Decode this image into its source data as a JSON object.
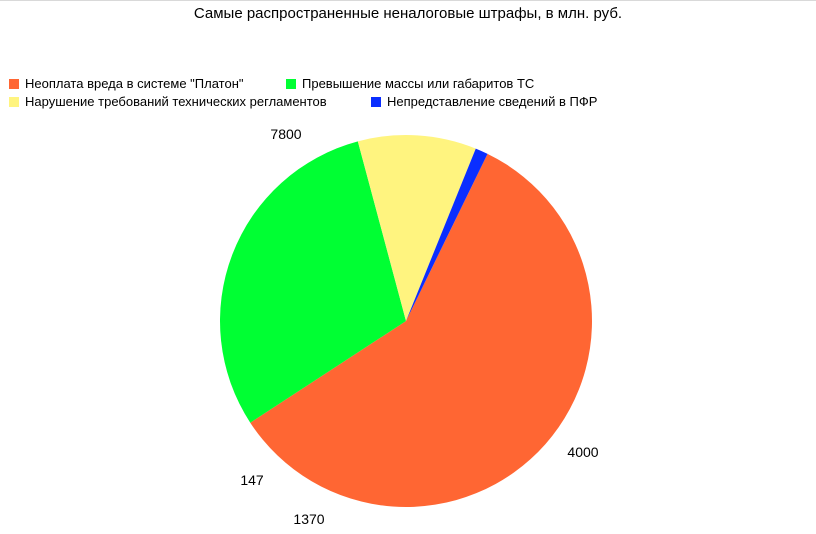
{
  "chart_data": {
    "type": "pie",
    "title": "Самые распространенные неналоговые штрафы, в млн. руб.",
    "legend_position": "top",
    "slices": [
      {
        "name": "Неоплата вреда в системе \"Платон\"",
        "value": 7800,
        "label": "7800",
        "color": "#ff6633"
      },
      {
        "name": "Превышение массы или габаритов ТС",
        "value": 4000,
        "label": "4000",
        "color": "#00ff33"
      },
      {
        "name": "Нарушение требований технических регламентов",
        "value": 1370,
        "label": "1370",
        "color": "#fff47f"
      },
      {
        "name": "Непредставление сведений в ПФР",
        "value": 147,
        "label": "147",
        "color": "#0a2eff"
      }
    ]
  }
}
